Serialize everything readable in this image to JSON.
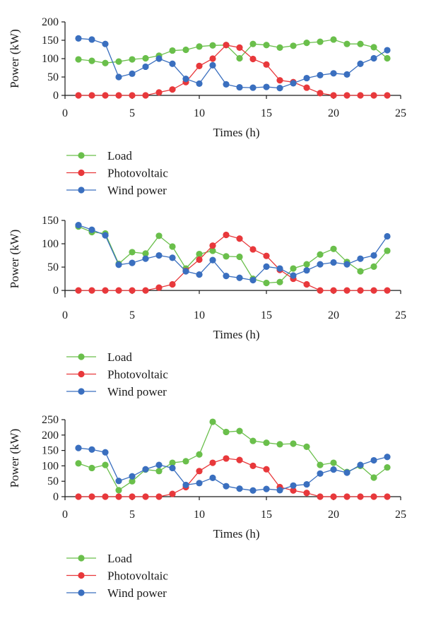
{
  "chart_data": [
    {
      "type": "line",
      "xlabel": "Times (h)",
      "ylabel": "Power (kW)",
      "xlim": [
        0,
        25
      ],
      "ylim": [
        0,
        200
      ],
      "xticks": [
        0,
        5,
        10,
        15,
        20,
        25
      ],
      "yticks": [
        0,
        50,
        100,
        150,
        200
      ],
      "grid": false,
      "legend": "below",
      "x": [
        1,
        2,
        3,
        4,
        5,
        6,
        7,
        8,
        9,
        10,
        11,
        12,
        13,
        14,
        15,
        16,
        17,
        18,
        19,
        20,
        21,
        22,
        23,
        24
      ],
      "series": [
        {
          "name": "Load",
          "color": "#6abf4b",
          "values": [
            98,
            94,
            88,
            92,
            98,
            101,
            108,
            122,
            124,
            133,
            136,
            137,
            101,
            140,
            137,
            130,
            135,
            143,
            146,
            152,
            140,
            140,
            131,
            101
          ]
        },
        {
          "name": "Photovoltaic",
          "color": "#e8383b",
          "values": [
            0,
            0,
            0,
            0,
            0,
            0,
            8,
            16,
            36,
            80,
            100,
            137,
            130,
            99,
            84,
            41,
            36,
            21,
            6,
            0,
            0,
            0,
            0,
            0
          ]
        },
        {
          "name": "Wind power",
          "color": "#3a6fbf",
          "values": [
            155,
            152,
            140,
            50,
            59,
            78,
            100,
            86,
            45,
            32,
            82,
            30,
            22,
            21,
            23,
            20,
            33,
            47,
            55,
            60,
            57,
            86,
            101,
            123
          ]
        }
      ]
    },
    {
      "type": "line",
      "xlabel": "Times (h)",
      "ylabel": "Power (kW)",
      "xlim": [
        0,
        25
      ],
      "ylim": [
        -15,
        150
      ],
      "xticks": [
        0,
        5,
        10,
        15,
        20,
        25
      ],
      "yticks": [
        0,
        50,
        100,
        150
      ],
      "grid": false,
      "legend": "below",
      "x": [
        1,
        2,
        3,
        4,
        5,
        6,
        7,
        8,
        9,
        10,
        11,
        12,
        13,
        14,
        15,
        16,
        17,
        18,
        19,
        20,
        21,
        22,
        23,
        24
      ],
      "series": [
        {
          "name": "Load",
          "color": "#6abf4b",
          "values": [
            137,
            125,
            122,
            57,
            82,
            79,
            117,
            94,
            47,
            78,
            85,
            73,
            72,
            25,
            16,
            18,
            47,
            56,
            77,
            89,
            61,
            41,
            51,
            85
          ]
        },
        {
          "name": "Photovoltaic",
          "color": "#e8383b",
          "values": [
            0,
            0,
            0,
            0,
            0,
            0,
            6,
            13,
            42,
            66,
            96,
            119,
            111,
            88,
            74,
            44,
            25,
            13,
            0,
            0,
            0,
            0,
            0,
            0
          ]
        },
        {
          "name": "Wind power",
          "color": "#3a6fbf",
          "values": [
            140,
            130,
            118,
            55,
            59,
            68,
            75,
            70,
            41,
            34,
            65,
            31,
            27,
            22,
            51,
            47,
            32,
            43,
            56,
            60,
            56,
            68,
            75,
            116
          ]
        }
      ]
    },
    {
      "type": "line",
      "xlabel": "Times (h)",
      "ylabel": "Power (kW)",
      "xlim": [
        0,
        25
      ],
      "ylim": [
        0,
        250
      ],
      "xticks": [
        0,
        5,
        10,
        15,
        20,
        25
      ],
      "yticks": [
        0,
        50,
        100,
        150,
        200,
        250
      ],
      "grid": false,
      "legend": "below",
      "x": [
        1,
        2,
        3,
        4,
        5,
        6,
        7,
        8,
        9,
        10,
        11,
        12,
        13,
        14,
        15,
        16,
        17,
        18,
        19,
        20,
        21,
        22,
        23,
        24
      ],
      "series": [
        {
          "name": "Load",
          "color": "#6abf4b",
          "values": [
            108,
            93,
            103,
            21,
            50,
            88,
            83,
            110,
            115,
            137,
            243,
            210,
            213,
            181,
            175,
            170,
            172,
            162,
            103,
            110,
            80,
            100,
            62,
            95
          ]
        },
        {
          "name": "Photovoltaic",
          "color": "#e8383b",
          "values": [
            0,
            0,
            0,
            0,
            0,
            0,
            0,
            9,
            31,
            83,
            110,
            124,
            119,
            100,
            89,
            31,
            20,
            12,
            0,
            0,
            0,
            0,
            0,
            0
          ]
        },
        {
          "name": "Wind power",
          "color": "#3a6fbf",
          "values": [
            158,
            153,
            144,
            51,
            66,
            89,
            103,
            93,
            38,
            44,
            61,
            34,
            26,
            20,
            25,
            21,
            36,
            40,
            75,
            88,
            78,
            103,
            118,
            129
          ]
        }
      ]
    }
  ],
  "colors": {
    "axis": "#1a1a1a"
  }
}
